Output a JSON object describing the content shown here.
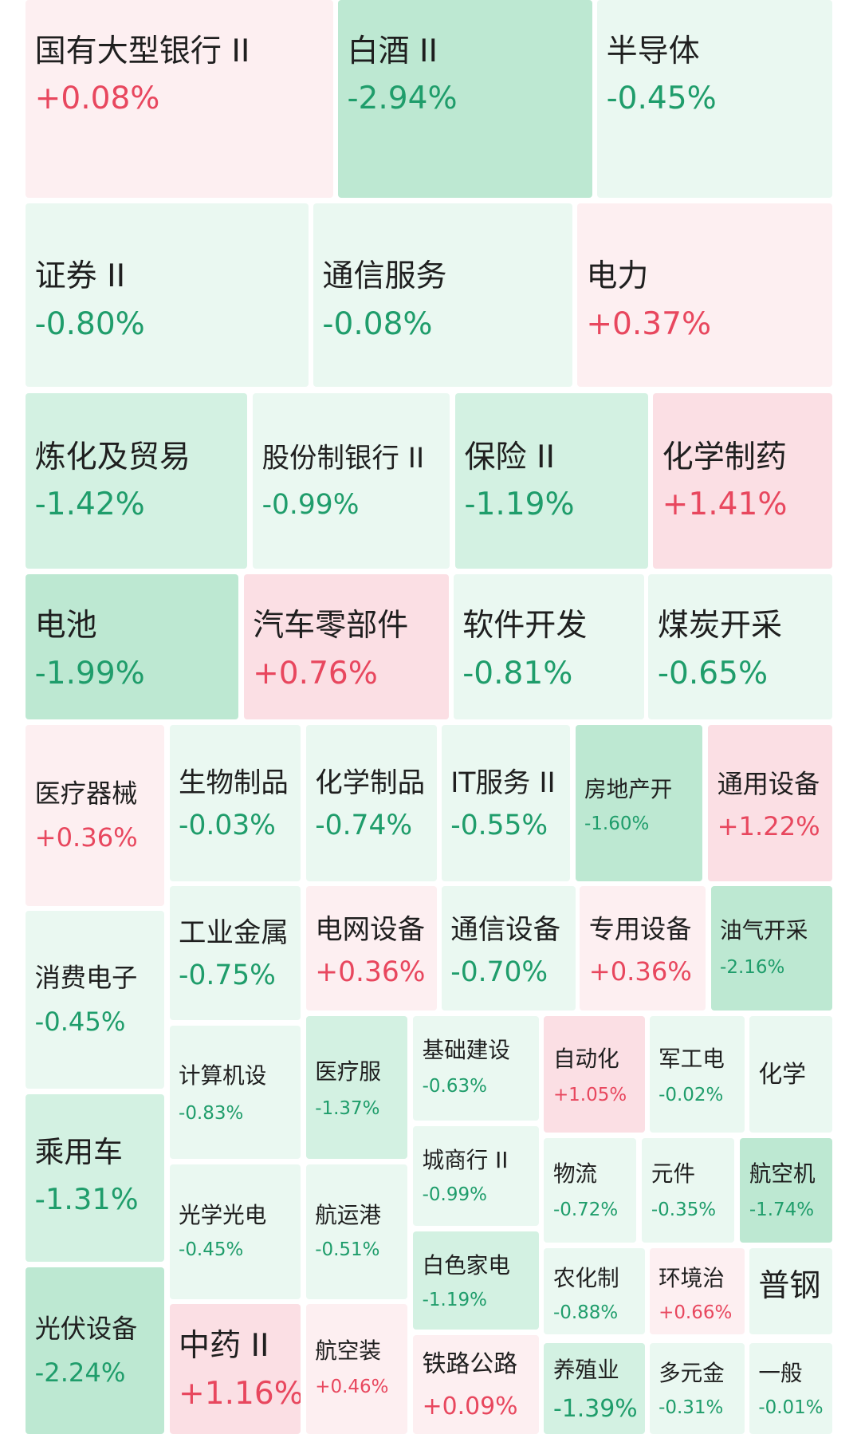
{
  "chart_data": {
    "type": "treemap",
    "title": "",
    "colors": {
      "up": "#e8475e",
      "down": "#1f9d6b",
      "up_fill_light": "#fdeff1",
      "up_fill_mid": "#fbdfe4",
      "down_fill_light": "#eaf8f1",
      "down_fill_mid": "#d3f1e2",
      "down_fill_strong": "#bde8d2"
    },
    "items": [
      {
        "name": "国有大型银行 II",
        "change": "+0.08%",
        "value": 0.08
      },
      {
        "name": "白酒 II",
        "change": "-2.94%",
        "value": -2.94
      },
      {
        "name": "半导体",
        "change": "-0.45%",
        "value": -0.45
      },
      {
        "name": "证券 II",
        "change": "-0.80%",
        "value": -0.8
      },
      {
        "name": "通信服务",
        "change": "-0.08%",
        "value": -0.08
      },
      {
        "name": "电力",
        "change": "+0.37%",
        "value": 0.37
      },
      {
        "name": "炼化及贸易",
        "change": "-1.42%",
        "value": -1.42
      },
      {
        "name": "股份制银行 II",
        "change": "-0.99%",
        "value": -0.99
      },
      {
        "name": "保险 II",
        "change": "-1.19%",
        "value": -1.19
      },
      {
        "name": "化学制药",
        "change": "+1.41%",
        "value": 1.41
      },
      {
        "name": "电池",
        "change": "-1.99%",
        "value": -1.99
      },
      {
        "name": "汽车零部件",
        "change": "+0.76%",
        "value": 0.76
      },
      {
        "name": "软件开发",
        "change": "-0.81%",
        "value": -0.81
      },
      {
        "name": "煤炭开采",
        "change": "-0.65%",
        "value": -0.65
      },
      {
        "name": "医疗器械",
        "change": "+0.36%",
        "value": 0.36
      },
      {
        "name": "生物制品",
        "change": "-0.03%",
        "value": -0.03
      },
      {
        "name": "化学制品",
        "change": "-0.74%",
        "value": -0.74
      },
      {
        "name": "IT服务 II",
        "change": "-0.55%",
        "value": -0.55
      },
      {
        "name": "房地产开",
        "change": "-1.60%",
        "value": -1.6
      },
      {
        "name": "通用设备",
        "change": "+1.22%",
        "value": 1.22
      },
      {
        "name": "消费电子",
        "change": "-0.45%",
        "value": -0.45
      },
      {
        "name": "工业金属",
        "change": "-0.75%",
        "value": -0.75
      },
      {
        "name": "电网设备",
        "change": "+0.36%",
        "value": 0.36
      },
      {
        "name": "通信设备",
        "change": "-0.70%",
        "value": -0.7
      },
      {
        "name": "专用设备",
        "change": "+0.36%",
        "value": 0.36
      },
      {
        "name": "油气开采",
        "change": "-2.16%",
        "value": -2.16
      },
      {
        "name": "计算机设",
        "change": "-0.83%",
        "value": -0.83
      },
      {
        "name": "医疗服",
        "change": "-1.37%",
        "value": -1.37
      },
      {
        "name": "基础建设",
        "change": "-0.63%",
        "value": -0.63
      },
      {
        "name": "自动化",
        "change": "+1.05%",
        "value": 1.05
      },
      {
        "name": "军工电",
        "change": "-0.02%",
        "value": -0.02
      },
      {
        "name": "化学",
        "change": "",
        "value": null
      },
      {
        "name": "乘用车",
        "change": "-1.31%",
        "value": -1.31
      },
      {
        "name": "城商行 II",
        "change": "-0.99%",
        "value": -0.99
      },
      {
        "name": "物流",
        "change": "-0.72%",
        "value": -0.72
      },
      {
        "name": "元件",
        "change": "-0.35%",
        "value": -0.35
      },
      {
        "name": "航空机",
        "change": "-1.74%",
        "value": -1.74
      },
      {
        "name": "光学光电",
        "change": "-0.45%",
        "value": -0.45
      },
      {
        "name": "航运港",
        "change": "-0.51%",
        "value": -0.51
      },
      {
        "name": "白色家电",
        "change": "-1.19%",
        "value": -1.19
      },
      {
        "name": "农化制",
        "change": "-0.88%",
        "value": -0.88
      },
      {
        "name": "环境治",
        "change": "+0.66%",
        "value": 0.66
      },
      {
        "name": "普钢",
        "change": "",
        "value": null
      },
      {
        "name": "光伏设备",
        "change": "-2.24%",
        "value": -2.24
      },
      {
        "name": "中药 II",
        "change": "+1.16%",
        "value": 1.16
      },
      {
        "name": "航空装",
        "change": "+0.46%",
        "value": 0.46
      },
      {
        "name": "铁路公路",
        "change": "+0.09%",
        "value": 0.09
      },
      {
        "name": "养殖业",
        "change": "-1.39%",
        "value": -1.39
      },
      {
        "name": "多元金",
        "change": "-0.31%",
        "value": -0.31
      },
      {
        "name": "一般",
        "change": "-0.01%",
        "value": -0.01
      }
    ]
  }
}
